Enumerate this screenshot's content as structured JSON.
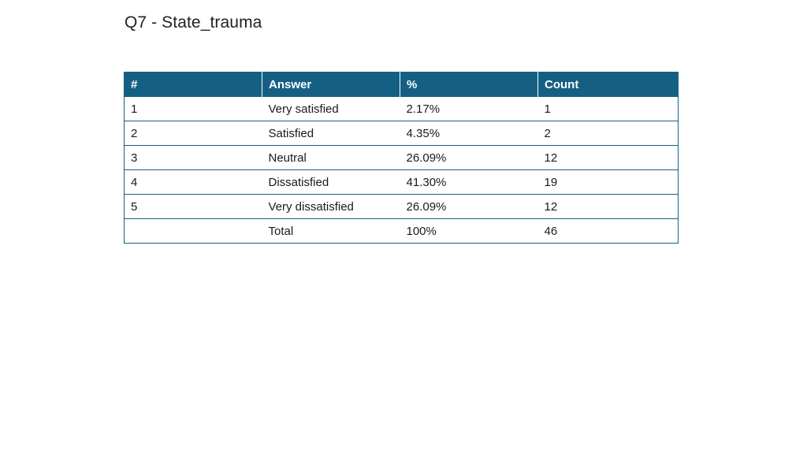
{
  "title": "Q7 - State_trauma",
  "table": {
    "headers": {
      "num": "#",
      "answer": "Answer",
      "percent": "%",
      "count": "Count"
    },
    "rows": [
      {
        "num": "1",
        "answer": "Very satisfied",
        "percent": "2.17%",
        "count": "1"
      },
      {
        "num": "2",
        "answer": "Satisfied",
        "percent": "4.35%",
        "count": "2"
      },
      {
        "num": "3",
        "answer": "Neutral",
        "percent": "26.09%",
        "count": "12"
      },
      {
        "num": "4",
        "answer": "Dissatisfied",
        "percent": "41.30%",
        "count": "19"
      },
      {
        "num": "5",
        "answer": "Very dissatisfied",
        "percent": "26.09%",
        "count": "12"
      },
      {
        "num": "",
        "answer": "Total",
        "percent": "100%",
        "count": "46"
      }
    ]
  },
  "colors": {
    "header_bg": "#156082",
    "header_text": "#ffffff",
    "border": "#156082"
  }
}
